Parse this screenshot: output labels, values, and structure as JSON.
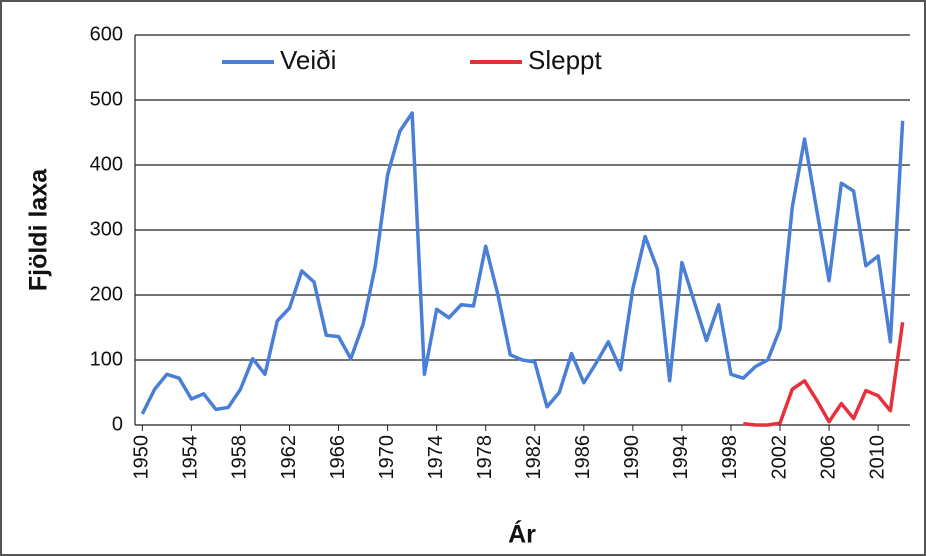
{
  "chart_data": {
    "type": "line",
    "x_label": "Ár",
    "y_label": "Fjöldi laxa",
    "x": [
      1950,
      1951,
      1952,
      1953,
      1954,
      1955,
      1956,
      1957,
      1958,
      1959,
      1960,
      1961,
      1962,
      1963,
      1964,
      1965,
      1966,
      1967,
      1968,
      1969,
      1970,
      1971,
      1972,
      1973,
      1974,
      1975,
      1976,
      1977,
      1978,
      1979,
      1980,
      1981,
      1982,
      1983,
      1984,
      1985,
      1986,
      1987,
      1988,
      1989,
      1990,
      1991,
      1992,
      1993,
      1994,
      1995,
      1996,
      1997,
      1998,
      1999,
      2000,
      2001,
      2002,
      2003,
      2004,
      2005,
      2006,
      2007,
      2008,
      2009,
      2010,
      2011,
      2012
    ],
    "series": [
      {
        "name": "Veiði",
        "color": "#4a7fd8",
        "values": [
          17,
          55,
          78,
          72,
          40,
          48,
          24,
          27,
          55,
          102,
          78,
          160,
          180,
          237,
          220,
          138,
          136,
          102,
          155,
          245,
          385,
          452,
          480,
          78,
          178,
          165,
          185,
          183,
          275,
          200,
          108,
          100,
          97,
          28,
          50,
          110,
          65,
          95,
          128,
          85,
          210,
          290,
          240,
          68,
          250,
          190,
          130,
          185,
          78,
          72,
          90,
          100,
          148,
          335,
          440,
          330,
          222,
          372,
          360,
          245,
          260,
          128,
          468
        ]
      },
      {
        "name": "Sleppt",
        "color": "#e8303a",
        "values": [
          null,
          null,
          null,
          null,
          null,
          null,
          null,
          null,
          null,
          null,
          null,
          null,
          null,
          null,
          null,
          null,
          null,
          null,
          null,
          null,
          null,
          null,
          null,
          null,
          null,
          null,
          null,
          null,
          null,
          null,
          null,
          null,
          null,
          null,
          null,
          null,
          null,
          null,
          null,
          null,
          null,
          null,
          null,
          null,
          null,
          null,
          null,
          null,
          null,
          2,
          0,
          0,
          3,
          55,
          68,
          38,
          5,
          33,
          10,
          53,
          45,
          22,
          158
        ]
      }
    ],
    "xlim": [
      1949.4,
      2012.6
    ],
    "xticks": [
      1950,
      1954,
      1958,
      1962,
      1966,
      1970,
      1974,
      1978,
      1982,
      1986,
      1990,
      1994,
      1998,
      2002,
      2006,
      2010
    ],
    "ylim": [
      0,
      600
    ],
    "yticks": [
      0,
      100,
      200,
      300,
      400,
      500,
      600
    ],
    "grid": true
  }
}
